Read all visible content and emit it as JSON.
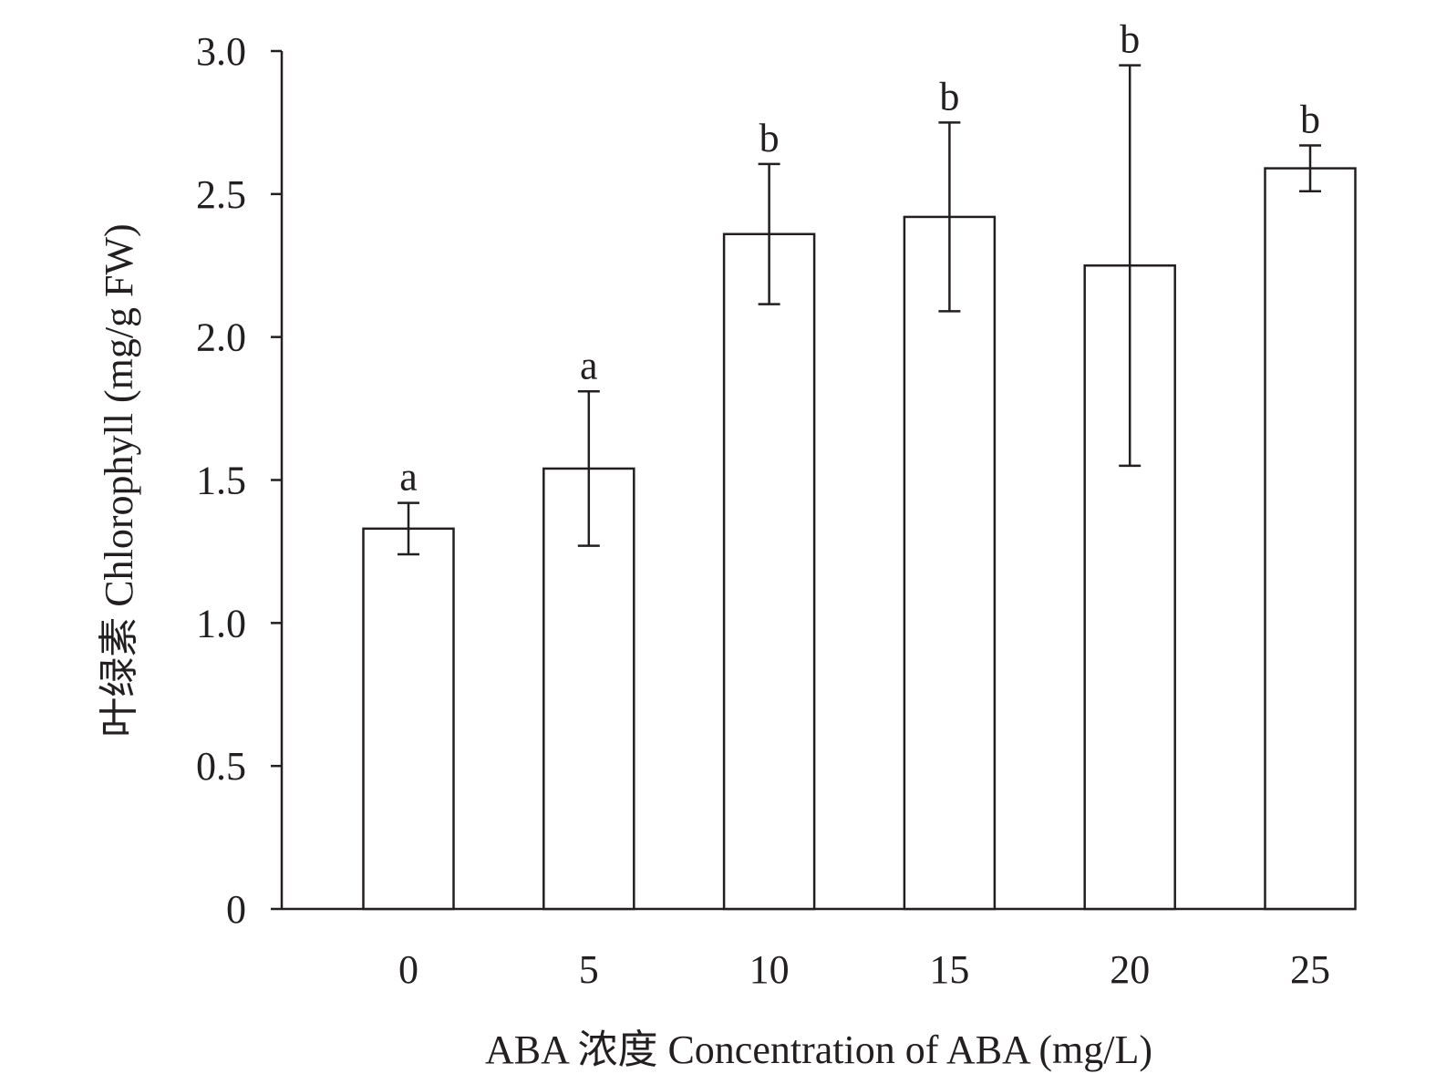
{
  "chart_data": {
    "type": "bar",
    "title": "",
    "xlabel": "ABA 浓度 Concentration of ABA (mg/L)",
    "ylabel": "叶绿素 Chlorophyll (mg/g FW)",
    "categories": [
      "0",
      "5",
      "10",
      "15",
      "20",
      "25"
    ],
    "values": [
      1.33,
      1.54,
      2.36,
      2.42,
      2.25,
      2.59
    ],
    "errors": [
      0.09,
      0.27,
      0.245,
      0.33,
      0.7,
      0.08
    ],
    "significance_letters": [
      "a",
      "a",
      "b",
      "b",
      "b",
      "b"
    ],
    "ylim": [
      0,
      3.0
    ],
    "yticks": [
      "0",
      "0.5",
      "1.0",
      "1.5",
      "2.0",
      "2.5",
      "3.0"
    ],
    "ytick_values": [
      0,
      0.5,
      1.0,
      1.5,
      2.0,
      2.5,
      3.0
    ],
    "grid": false,
    "legend": "none",
    "colors": {
      "bar_fill": "#ffffff",
      "stroke": "#231f20"
    }
  }
}
